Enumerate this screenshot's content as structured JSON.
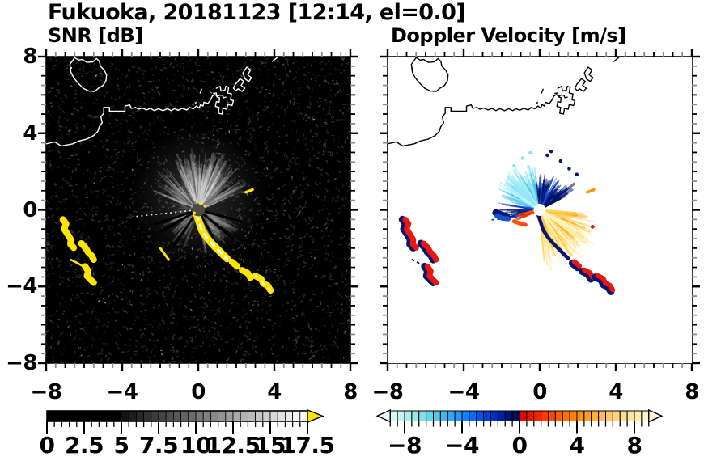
{
  "title": "Fukuoka, 20181123 [12:14, el=0.0]",
  "panels": {
    "snr": {
      "subtitle": "SNR [dB]"
    },
    "vel": {
      "subtitle": "Doppler Velocity [m/s]"
    }
  },
  "shared": {
    "radar_center": [
      0,
      0
    ],
    "texture_seed": 20181123,
    "coastline": {
      "main_shore": [
        [
          -8,
          3.45
        ],
        [
          -7.55,
          3.55
        ],
        [
          -7.2,
          3.33
        ],
        [
          -6.6,
          3.45
        ],
        [
          -6.25,
          3.6
        ],
        [
          -5.85,
          3.7
        ],
        [
          -5.5,
          3.88
        ],
        [
          -5.28,
          4.1
        ],
        [
          -5.2,
          4.35
        ],
        [
          -5.05,
          4.55
        ],
        [
          -5.12,
          4.85
        ],
        [
          -4.97,
          5.05
        ],
        [
          -4.97,
          5.35
        ],
        [
          -4.67,
          5.35
        ],
        [
          -4.67,
          5.15
        ],
        [
          -3.85,
          5.15
        ],
        [
          -3.85,
          5.42
        ],
        [
          -3.6,
          5.48
        ],
        [
          -3.52,
          5.3
        ],
        [
          -3.3,
          5.35
        ],
        [
          -3.15,
          5.25
        ],
        [
          -2.95,
          5.32
        ],
        [
          -2.72,
          5.22
        ],
        [
          -2.52,
          5.3
        ],
        [
          -2.3,
          5.18
        ],
        [
          -2.1,
          5.28
        ],
        [
          -1.85,
          5.18
        ],
        [
          -1.62,
          5.28
        ],
        [
          -1.42,
          5.18
        ],
        [
          -1.25,
          5.28
        ],
        [
          -1.05,
          5.2
        ],
        [
          -0.85,
          5.3
        ],
        [
          -0.6,
          5.22
        ],
        [
          -0.45,
          5.35
        ],
        [
          -0.25,
          5.28
        ],
        [
          -0.1,
          5.42
        ],
        [
          0.05,
          5.32
        ],
        [
          0.12,
          5.5
        ],
        [
          0.25,
          5.42
        ],
        [
          0.3,
          5.62
        ],
        [
          0.5,
          5.55
        ],
        [
          0.62,
          5.7
        ],
        [
          0.75,
          5.95
        ],
        [
          0.88,
          6.02
        ],
        [
          1.0,
          5.92
        ],
        [
          1.12,
          6.0
        ],
        [
          1.28,
          5.98
        ],
        [
          1.32,
          5.85
        ],
        [
          1.45,
          5.88
        ]
      ],
      "island_loop": [
        [
          -6.5,
          7.95
        ],
        [
          -6.75,
          7.6
        ],
        [
          -6.7,
          7.2
        ],
        [
          -6.55,
          6.9
        ],
        [
          -6.3,
          6.6
        ],
        [
          -6.05,
          6.35
        ],
        [
          -5.75,
          6.2
        ],
        [
          -5.45,
          6.18
        ],
        [
          -5.25,
          6.35
        ],
        [
          -5.0,
          6.5
        ],
        [
          -4.85,
          6.75
        ],
        [
          -4.82,
          7.05
        ],
        [
          -4.95,
          7.3
        ],
        [
          -5.15,
          7.5
        ],
        [
          -5.2,
          7.75
        ],
        [
          -5.35,
          7.9
        ],
        [
          -5.55,
          7.72
        ],
        [
          -5.85,
          7.7
        ],
        [
          -6.1,
          7.85
        ],
        [
          -6.3,
          7.82
        ],
        [
          -6.5,
          7.95
        ]
      ],
      "pier1": [
        [
          0.95,
          6.35
        ],
        [
          1.15,
          6.45
        ],
        [
          1.2,
          6.2
        ],
        [
          1.4,
          6.25
        ],
        [
          1.45,
          6.45
        ],
        [
          1.6,
          6.4
        ],
        [
          1.55,
          6.1
        ],
        [
          1.75,
          6.05
        ],
        [
          1.7,
          5.75
        ],
        [
          1.85,
          5.7
        ],
        [
          1.78,
          5.45
        ],
        [
          1.55,
          5.5
        ],
        [
          1.5,
          5.25
        ],
        [
          1.3,
          5.3
        ],
        [
          1.25,
          5.0
        ],
        [
          1.05,
          5.05
        ],
        [
          1.1,
          5.35
        ],
        [
          0.9,
          5.4
        ],
        [
          0.95,
          5.65
        ],
        [
          1.1,
          5.62
        ],
        [
          1.12,
          5.85
        ],
        [
          0.98,
          5.9
        ],
        [
          0.95,
          6.1
        ],
        [
          0.8,
          6.08
        ]
      ],
      "pier2": [
        [
          1.95,
          6.55
        ],
        [
          2.2,
          6.85
        ],
        [
          2.4,
          6.7
        ],
        [
          2.25,
          6.5
        ],
        [
          2.45,
          6.35
        ],
        [
          2.3,
          6.18
        ],
        [
          2.1,
          6.32
        ],
        [
          1.98,
          6.22
        ],
        [
          1.85,
          6.35
        ],
        [
          1.95,
          6.55
        ]
      ],
      "pier3": [
        [
          2.35,
          7.15
        ],
        [
          2.55,
          7.45
        ],
        [
          2.75,
          7.3
        ],
        [
          2.6,
          7.05
        ],
        [
          2.8,
          6.9
        ],
        [
          2.65,
          6.7
        ],
        [
          2.45,
          6.85
        ],
        [
          2.35,
          7.15
        ]
      ],
      "bits": [
        [
          [
            0.1,
            6.1
          ],
          [
            0.18,
            6.3
          ]
        ],
        [
          [
            -0.15,
            5.55
          ],
          [
            -0.12,
            5.62
          ]
        ],
        [
          [
            3.9,
            7.75
          ],
          [
            4.15,
            7.95
          ]
        ],
        [
          [
            -6.72,
            7.35
          ],
          [
            -6.66,
            7.42
          ]
        ]
      ]
    },
    "ship_trails": {
      "west_arc_a": [
        [
          -7.12,
          -0.5
        ],
        [
          -6.95,
          -0.72
        ],
        [
          -7.05,
          -1.0
        ],
        [
          -6.85,
          -1.3
        ],
        [
          -6.7,
          -1.55
        ],
        [
          -6.72,
          -1.8
        ],
        [
          -6.55,
          -1.98
        ]
      ],
      "west_arc_b": [
        [
          -6.15,
          -1.75
        ],
        [
          -5.95,
          -1.95
        ],
        [
          -5.8,
          -2.2
        ],
        [
          -5.6,
          -2.4
        ],
        [
          -5.5,
          -2.6
        ]
      ],
      "west_dash_c": [
        [
          -6.7,
          -2.6
        ],
        [
          -6.35,
          -2.78
        ],
        [
          -6.1,
          -2.92
        ]
      ],
      "west_arc_d": [
        [
          -5.95,
          -2.95
        ],
        [
          -5.78,
          -3.2
        ],
        [
          -5.85,
          -3.45
        ],
        [
          -5.65,
          -3.65
        ],
        [
          -5.5,
          -3.8
        ]
      ],
      "chain_1": [
        [
          -0.08,
          -0.25
        ],
        [
          0.05,
          -0.65
        ],
        [
          0.18,
          -1.05
        ],
        [
          0.42,
          -1.42
        ],
        [
          0.68,
          -1.72
        ],
        [
          0.98,
          -2.02
        ],
        [
          1.28,
          -2.32
        ],
        [
          1.52,
          -2.55
        ]
      ],
      "chain_2": [
        [
          1.78,
          -2.72
        ],
        [
          2.05,
          -2.95
        ]
      ],
      "chain_3a": [
        [
          2.3,
          -3.15
        ],
        [
          2.6,
          -3.3
        ],
        [
          2.75,
          -3.55
        ]
      ],
      "chain_3b": [
        [
          3.0,
          -3.45
        ],
        [
          3.3,
          -3.6
        ],
        [
          3.42,
          -3.85
        ],
        [
          3.65,
          -3.95
        ],
        [
          3.8,
          -4.2
        ]
      ],
      "ne_dash": [
        [
          2.5,
          0.92
        ],
        [
          2.85,
          1.05
        ]
      ],
      "mid_dash": [
        [
          -2.0,
          -2.0
        ],
        [
          -1.55,
          -2.6
        ]
      ]
    }
  },
  "chart_data": [
    {
      "type": "heatmap",
      "name": "snr_ppi",
      "title": "SNR [dB]",
      "xlim": [
        -8,
        8
      ],
      "ylim": [
        -8,
        8
      ],
      "xticks": {
        "values": [
          -8,
          -4,
          0,
          4,
          8
        ],
        "labels": [
          "−8",
          "−4",
          "0",
          "4",
          "8"
        ]
      },
      "yticks": {
        "values": [
          -8,
          -4,
          0,
          4,
          8
        ],
        "labels": [
          "8",
          "4",
          "0",
          "−4",
          "−8"
        ]
      },
      "minor_tick_step": 0.5,
      "background": "#000000",
      "coast_color": "#ffffff",
      "echo_color": "#ffe400",
      "colorbar": {
        "range": [
          0,
          17.5
        ],
        "solid_black_until": 5,
        "cell_step": 0.5,
        "ramp": [
          "#0a0a0a",
          "#ffffff"
        ],
        "overflow_arrow": "#ffe400",
        "label_values": [
          0,
          2.5,
          5,
          7.5,
          10,
          12.5,
          15,
          17.5
        ],
        "labels": [
          "0",
          "2.5",
          "5",
          "7.5",
          "10",
          "12.5",
          "15",
          "17.5"
        ]
      },
      "fan_sectors": [
        {
          "a0": 22,
          "a1": 158,
          "n": 150,
          "r0": 1.2,
          "r1": 2.9,
          "gray": [
            80,
            185
          ]
        },
        {
          "a0": 55,
          "a1": 118,
          "n": 70,
          "r0": 1.5,
          "r1": 3.25,
          "gray": [
            110,
            215
          ]
        },
        {
          "a0": -85,
          "a1": -18,
          "n": 65,
          "r0": 0.7,
          "r1": 2.35,
          "gray": [
            70,
            170
          ]
        },
        {
          "a0": 196,
          "a1": 252,
          "n": 45,
          "r0": 0.6,
          "r1": 2.1,
          "gray": [
            60,
            150
          ]
        },
        {
          "a0": 158,
          "a1": 196,
          "n": 14,
          "r0": 0.8,
          "r1": 1.8,
          "gray": [
            50,
            110
          ]
        }
      ],
      "shadow_ray_angles": [
        -62,
        -40,
        -15,
        198,
        210,
        236
      ],
      "dashed_ray": {
        "angle": 186,
        "r1": 3.35
      }
    },
    {
      "type": "heatmap",
      "name": "velocity_ppi",
      "title": "Doppler Velocity [m/s]",
      "xlim": [
        -8,
        8
      ],
      "ylim": [
        -8,
        8
      ],
      "xticks": {
        "values": [
          -8,
          -4,
          0,
          4,
          8
        ],
        "labels": [
          "−8",
          "−4",
          "0",
          "4",
          "8"
        ]
      },
      "minor_tick_step": 0.5,
      "background": "#ffffff",
      "coast_color": "#000000",
      "colorbar": {
        "range": [
          -9,
          9
        ],
        "cell_step": 0.5,
        "cells": [
          "#d8f8f4",
          "#c3f4f1",
          "#aeefee",
          "#97e9ea",
          "#7ee1e7",
          "#65d8e5",
          "#52c9ea",
          "#42b8f0",
          "#33a6f4",
          "#2494f8",
          "#167ffb",
          "#0769f8",
          "#0054ee",
          "#0041da",
          "#0030c0",
          "#0021a2",
          "#001380",
          "#000a56",
          "#e60000",
          "#f01000",
          "#f92300",
          "#ff3700",
          "#ff4b00",
          "#ff5e00",
          "#ff7000",
          "#ff8100",
          "#ff9110",
          "#ffa028",
          "#ffae3e",
          "#ffbb54",
          "#ffc768",
          "#ffd27c",
          "#ffdc90",
          "#ffe5a4",
          "#ffedb6",
          "#fff4c8"
        ],
        "under_arrow": "#e4fbf7",
        "over_arrow": "#fdf8d6",
        "label_values": [
          -8,
          -4,
          0,
          4,
          8
        ],
        "labels": [
          "−8",
          "−4",
          "0",
          "4",
          "8"
        ]
      },
      "fan_sectors": [
        {
          "a0": 96,
          "a1": 166,
          "n": 85,
          "r0": 1.0,
          "r1": 2.5,
          "colors": [
            "#a8ecf8",
            "#7fe0f4",
            "#55ccee",
            "#30b2e6",
            "#8fdff2"
          ]
        },
        {
          "a0": 120,
          "a1": 150,
          "n": 25,
          "r0": 1.8,
          "r1": 2.7,
          "colors": [
            "#bdf2fa",
            "#93e6f6"
          ]
        },
        {
          "a0": 38,
          "a1": 98,
          "n": 70,
          "r0": 0.6,
          "r1": 1.95,
          "colors": [
            "#1a52e0",
            "#0c36bc",
            "#051e8c",
            "#02105e",
            "#000938"
          ]
        },
        {
          "a0": 25,
          "a1": 40,
          "n": 10,
          "r0": 1.4,
          "r1": 2.35,
          "colors": [
            "#051e8c",
            "#02105e"
          ]
        },
        {
          "a0": 170,
          "a1": 197,
          "n": 22,
          "r0": 0.9,
          "r1": 2.25,
          "colors": [
            "#1a50d8",
            "#0a2ca0",
            "#041668"
          ]
        },
        {
          "a0": 186,
          "a1": 206,
          "n": 16,
          "r0": 0.45,
          "r1": 1.45,
          "colors": [
            "#f03000",
            "#ff5c00"
          ]
        },
        {
          "a0": -58,
          "a1": -6,
          "n": 40,
          "r0": 0.3,
          "r1": 1.35,
          "colors": [
            "#ff4e00",
            "#ee2000",
            "#ff7300"
          ]
        },
        {
          "a0": -88,
          "a1": -4,
          "n": 140,
          "r0": 0.85,
          "r1": 3.0,
          "colors": [
            "#ffd65e",
            "#ffc33a",
            "#ffe88e",
            "#fff2b0",
            "#ffa62a",
            "#ffde74"
          ]
        },
        {
          "a0": -80,
          "a1": -25,
          "n": 20,
          "r0": 2.7,
          "r1": 3.45,
          "colors": [
            "#ffeda2",
            "#fff4c2"
          ]
        }
      ],
      "extra": {
        "navy": "#0a1670",
        "red": "#e81810",
        "blue": "#1a50d8",
        "left_cluster_navy": [
          [
            -2.3,
            -0.15
          ],
          [
            -2.0,
            -0.28
          ],
          [
            -1.75,
            -0.35
          ]
        ],
        "left_cluster_blue": [
          [
            -2.25,
            -0.32
          ],
          [
            -1.95,
            -0.44
          ],
          [
            -1.65,
            -0.47
          ]
        ],
        "left_red_fringe": [
          [
            -1.35,
            -0.6
          ],
          [
            -1.0,
            -0.72
          ],
          [
            -0.75,
            -0.78
          ]
        ],
        "dotted_blue": [
          [
            -2.5,
            -0.52
          ],
          [
            -1.15,
            -0.38
          ]
        ],
        "navy_dots": [
          [
            1.55,
            2.15
          ],
          [
            1.1,
            2.55
          ],
          [
            0.4,
            2.85
          ],
          [
            1.95,
            1.85
          ],
          [
            0.6,
            3.05
          ]
        ],
        "cyan_dots": [
          [
            -0.9,
            2.7
          ],
          [
            -1.35,
            2.3
          ],
          [
            -0.5,
            2.98
          ]
        ],
        "red_dots": [
          [
            2.78,
            -0.88
          ]
        ]
      }
    }
  ]
}
